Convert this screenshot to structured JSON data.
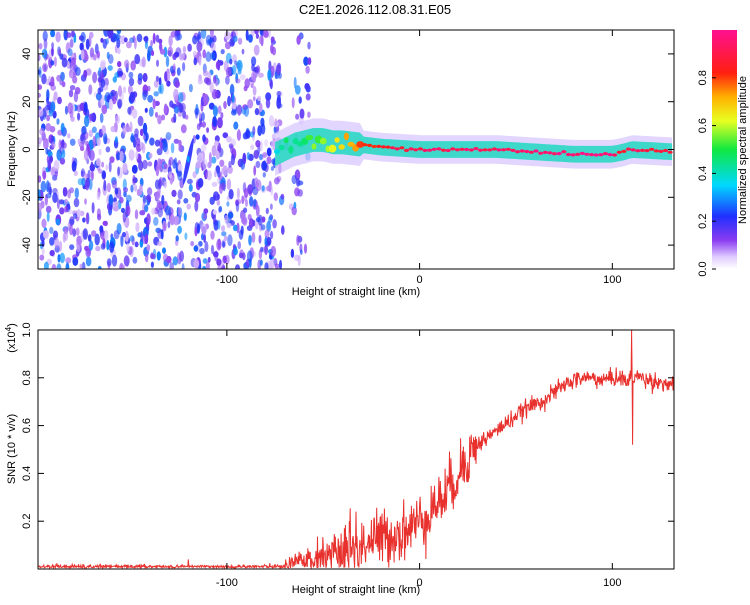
{
  "figure": {
    "title": "C2E1.2026.112.08.31.E05"
  },
  "chart_data": [
    {
      "type": "heatmap",
      "name": "spectrogram",
      "xlabel": "Height of straight line (km)",
      "ylabel": "Frequency (Hz)",
      "xlim": [
        -198,
        132
      ],
      "ylim": [
        -50,
        50
      ],
      "xticks": [
        -100,
        0,
        100
      ],
      "xtick_labels": [
        "-100",
        "0",
        "100"
      ],
      "yticks": [
        -40,
        -20,
        0,
        20,
        40
      ],
      "ytick_labels": [
        "-40",
        "-20",
        "0",
        "20",
        "40"
      ],
      "colorbar": {
        "label": "Normalized spectral amplitude",
        "range": [
          0,
          1
        ],
        "ticks": [
          0.0,
          0.2,
          0.4,
          0.6,
          0.8
        ],
        "tick_labels": [
          "0.0",
          "0.2",
          "0.4",
          "0.6",
          "0.8"
        ],
        "colormap": "rainbow (white-purple-blue-cyan-green-yellow-orange-red-magenta)"
      },
      "ridge": {
        "description": "dominant spectral line near 0 Hz",
        "x": [
          -75,
          -70,
          -65,
          -60,
          -55,
          -50,
          -45,
          -40,
          -30,
          -20,
          -10,
          0,
          20,
          40,
          60,
          80,
          100,
          106,
          110,
          132
        ],
        "frequency": [
          -2,
          0,
          2,
          3,
          4,
          4,
          3,
          3,
          2,
          1,
          0.5,
          0,
          0,
          0,
          -1,
          -2,
          -2,
          -1,
          0,
          -1
        ],
        "amplitude": [
          0.35,
          0.45,
          0.45,
          0.5,
          0.55,
          0.55,
          0.6,
          0.7,
          0.8,
          0.85,
          0.9,
          0.92,
          0.93,
          0.93,
          0.95,
          0.96,
          0.97,
          0.85,
          0.9,
          0.9
        ]
      },
      "noise_region": {
        "description": "scattered purple noise blobs at low amplitude",
        "x_range": [
          -198,
          -57
        ],
        "amplitude_range": [
          0.05,
          0.3
        ]
      },
      "feature": {
        "description": "narrow tilted cyan streak",
        "x": -120,
        "frequency_range": [
          -15,
          5
        ],
        "amplitude": 0.3
      }
    },
    {
      "type": "line",
      "name": "snr",
      "xlabel": "Height of straight line (km)",
      "ylabel": "SNR (10 * v/v)",
      "exponent_label": "(x10",
      "exponent_sup": "4",
      "exponent_close": ")",
      "xlim": [
        -198,
        132
      ],
      "ylim": [
        0,
        1.0
      ],
      "xticks": [
        -100,
        0,
        100
      ],
      "xtick_labels": [
        "-100",
        "0",
        "100"
      ],
      "yticks": [
        0.2,
        0.4,
        0.6,
        0.8,
        1.0
      ],
      "ytick_labels": [
        "0.2",
        "0.4",
        "0.6",
        "0.8",
        "1.0"
      ],
      "color": "#e8302c",
      "series": [
        {
          "name": "SNR",
          "x": [
            -198,
            -180,
            -160,
            -140,
            -120,
            -100,
            -80,
            -70,
            -65,
            -60,
            -55,
            -50,
            -45,
            -40,
            -35,
            -30,
            -25,
            -20,
            -15,
            -10,
            -5,
            0,
            5,
            10,
            15,
            20,
            25,
            30,
            35,
            40,
            45,
            50,
            55,
            60,
            65,
            70,
            75,
            80,
            85,
            90,
            95,
            100,
            105,
            108,
            110,
            112,
            115,
            120,
            125,
            132
          ],
          "y": [
            0.01,
            0.01,
            0.01,
            0.01,
            0.01,
            0.01,
            0.01,
            0.01,
            0.02,
            0.04,
            0.05,
            0.06,
            0.05,
            0.07,
            0.08,
            0.1,
            0.12,
            0.13,
            0.14,
            0.15,
            0.17,
            0.2,
            0.24,
            0.28,
            0.33,
            0.4,
            0.47,
            0.52,
            0.55,
            0.58,
            0.61,
            0.64,
            0.67,
            0.69,
            0.71,
            0.74,
            0.77,
            0.79,
            0.8,
            0.8,
            0.79,
            0.8,
            0.8,
            0.78,
            0.8,
            0.81,
            0.8,
            0.79,
            0.78,
            0.77
          ],
          "spikes": [
            {
              "x": -120,
              "y": 0.04
            },
            {
              "x": -33,
              "y": 0.24
            },
            {
              "x": 110,
              "y": 1.0
            },
            {
              "x": 110.5,
              "y": 0.52
            }
          ]
        }
      ]
    }
  ]
}
